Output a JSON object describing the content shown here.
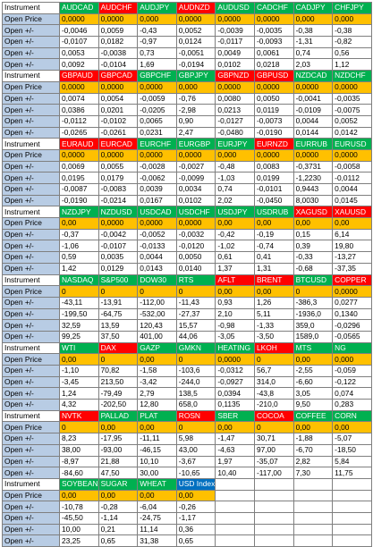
{
  "colors": {
    "green": "#00b050",
    "red": "#ff0000",
    "blue": "#0070c0",
    "orange": "#ffc000",
    "label_bg": "#b8cce4"
  },
  "blocks": [
    {
      "header": "Instrument",
      "open_label": "Open Price",
      "row_label": "Open +/-",
      "symbols": [
        {
          "name": "AUDCAD",
          "color": "g"
        },
        {
          "name": "AUDCHF",
          "color": "r"
        },
        {
          "name": "AUDJPY",
          "color": "g"
        },
        {
          "name": "AUDNZD",
          "color": "r"
        },
        {
          "name": "AUDUSD",
          "color": "g"
        },
        {
          "name": "CADCHF",
          "color": "g"
        },
        {
          "name": "CADJPY",
          "color": "g"
        },
        {
          "name": "CHFJPY",
          "color": "g"
        }
      ],
      "open": [
        "0,0000",
        "0,0000",
        "0,000",
        "0,0000",
        "0,0000",
        "0,0000",
        "0,000",
        "0,000"
      ],
      "rows": [
        [
          "-0,0046",
          "0,0059",
          "-0,43",
          "0,0052",
          "-0,0039",
          "-0,0035",
          "-0,38",
          "-0,38"
        ],
        [
          "-0,0107",
          "0,0182",
          "-0,97",
          "0,0124",
          "-0,0117",
          "-0,0093",
          "-1,31",
          "-0,82"
        ],
        [
          "0,0053",
          "-0,0038",
          "0,73",
          "-0,0051",
          "0,0049",
          "0,0061",
          "0,74",
          "0,56"
        ],
        [
          "0,0092",
          "-0,0104",
          "1,69",
          "-0,0194",
          "0,0102",
          "0,0218",
          "2,03",
          "1,12"
        ]
      ]
    },
    {
      "header": "Instrument",
      "open_label": "Open Price",
      "row_label": "Open +/-",
      "symbols": [
        {
          "name": "GBPAUD",
          "color": "r"
        },
        {
          "name": "GBPCAD",
          "color": "r"
        },
        {
          "name": "GBPCHF",
          "color": "g"
        },
        {
          "name": "GBPJPY",
          "color": "g"
        },
        {
          "name": "GBPNZD",
          "color": "r"
        },
        {
          "name": "GBPUSD",
          "color": "r"
        },
        {
          "name": "NZDCAD",
          "color": "g"
        },
        {
          "name": "NZDCHF",
          "color": "g"
        }
      ],
      "open": [
        "0,0000",
        "0,0000",
        "0,0000",
        "0,000",
        "0,0000",
        "0,0000",
        "0,0000",
        "0,0000"
      ],
      "rows": [
        [
          "0,0074",
          "0,0054",
          "-0,0059",
          "-0,76",
          "0,0080",
          "0,0050",
          "-0,0041",
          "-0,0035"
        ],
        [
          "0,0386",
          "0,0201",
          "-0,0205",
          "-2,98",
          "0,0213",
          "0,0119",
          "-0,0109",
          "-0,0075"
        ],
        [
          "-0,0112",
          "-0,0102",
          "0,0065",
          "0,90",
          "-0,0127",
          "-0,0073",
          "0,0044",
          "0,0052"
        ],
        [
          "-0,0265",
          "-0,0261",
          "0,0231",
          "2,47",
          "-0,0480",
          "-0,0190",
          "0,0144",
          "0,0142"
        ]
      ]
    },
    {
      "header": "Instrument",
      "open_label": "Open Price",
      "row_label": "Open +/-",
      "symbols": [
        {
          "name": "EURAUD",
          "color": "r"
        },
        {
          "name": "EURCAD",
          "color": "r"
        },
        {
          "name": "EURCHF",
          "color": "g"
        },
        {
          "name": "EURGBP",
          "color": "g"
        },
        {
          "name": "EURJPY",
          "color": "g"
        },
        {
          "name": "EURNZD",
          "color": "r"
        },
        {
          "name": "EURRUB",
          "color": "g"
        },
        {
          "name": "EURUSD",
          "color": "g"
        }
      ],
      "open": [
        "0,0000",
        "0,0000",
        "0,0000",
        "0,0000",
        "0,000",
        "0,0000",
        "0,0000",
        "0,0000"
      ],
      "rows": [
        [
          "0,0069",
          "0,0055",
          "-0,0028",
          "-0,0027",
          "-0,48",
          "0,0083",
          "-0,3731",
          "-0,0058"
        ],
        [
          "0,0195",
          "0,0179",
          "-0,0062",
          "-0,0099",
          "-1,03",
          "0,0199",
          "-1,2230",
          "-0,0112"
        ],
        [
          "-0,0087",
          "-0,0083",
          "0,0039",
          "0,0034",
          "0,74",
          "-0,0101",
          "0,9443",
          "0,0044"
        ],
        [
          "-0,0190",
          "-0,0214",
          "0,0167",
          "0,0102",
          "2,02",
          "-0,0450",
          "8,0030",
          "0,0145"
        ]
      ]
    },
    {
      "header": "Instrument",
      "open_label": "Open Price",
      "row_label": "Open +/-",
      "symbols": [
        {
          "name": "NZDJPY",
          "color": "g"
        },
        {
          "name": "NZDUSD",
          "color": "g"
        },
        {
          "name": "USDCAD",
          "color": "g"
        },
        {
          "name": "USDCHF",
          "color": "g"
        },
        {
          "name": "USDJPY",
          "color": "g"
        },
        {
          "name": "USDRUB",
          "color": "g"
        },
        {
          "name": "XAGUSD",
          "color": "r"
        },
        {
          "name": "XAUUSD",
          "color": "r"
        }
      ],
      "open": [
        "0,00",
        "0,0000",
        "0,0000",
        "0,0000",
        "0,00",
        "0,00",
        "0,00",
        "0,00"
      ],
      "rows": [
        [
          "-0,37",
          "-0,0042",
          "-0,0052",
          "-0,0032",
          "-0,42",
          "-0,19",
          "0,15",
          "6,14"
        ],
        [
          "-1,06",
          "-0,0107",
          "-0,0133",
          "-0,0120",
          "-1,02",
          "-0,74",
          "0,39",
          "19,80"
        ],
        [
          "0,59",
          "0,0035",
          "0,0044",
          "0,0050",
          "0,61",
          "0,41",
          "-0,33",
          "-13,27"
        ],
        [
          "1,42",
          "0,0129",
          "0,0143",
          "0,0140",
          "1,37",
          "1,31",
          "-0,68",
          "-37,35"
        ]
      ]
    },
    {
      "header": "Instrument",
      "open_label": "Open Price",
      "row_label": "Open +/-",
      "symbols": [
        {
          "name": "NASDAQ",
          "color": "g"
        },
        {
          "name": "S&P500",
          "color": "g"
        },
        {
          "name": "DOW30",
          "color": "g"
        },
        {
          "name": "RTS",
          "color": "g"
        },
        {
          "name": "AFLT",
          "color": "r"
        },
        {
          "name": "BRENT",
          "color": "r"
        },
        {
          "name": "BTCUSD",
          "color": "g"
        },
        {
          "name": "COPPER",
          "color": "r"
        }
      ],
      "open": [
        "0",
        "0",
        "0",
        "0",
        "0,00",
        "0,00",
        "0",
        "0,0000"
      ],
      "rows": [
        [
          "-43,11",
          "-13,91",
          "-112,00",
          "-11,43",
          "0,93",
          "1,26",
          "-386,3",
          "0,0277"
        ],
        [
          "-199,50",
          "-64,75",
          "-532,00",
          "-27,37",
          "2,10",
          "5,11",
          "-1936,0",
          "0,1340"
        ],
        [
          "32,59",
          "13,59",
          "120,43",
          "15,57",
          "-0,98",
          "-1,33",
          "359,0",
          "-0,0296"
        ],
        [
          "99,25",
          "37,50",
          "401,00",
          "44,06",
          "-3,05",
          "-3,50",
          "1589,0",
          "-0,0565"
        ]
      ]
    },
    {
      "header": "Instrument",
      "open_label": "Open Price",
      "row_label": "Open +/-",
      "symbols": [
        {
          "name": "WTI",
          "color": "g"
        },
        {
          "name": "DAX",
          "color": "r"
        },
        {
          "name": "GAZP",
          "color": "g"
        },
        {
          "name": "GMKN",
          "color": "g"
        },
        {
          "name": "HEATING",
          "color": "g"
        },
        {
          "name": "LKOH",
          "color": "r"
        },
        {
          "name": "MTS",
          "color": "g"
        },
        {
          "name": "NG",
          "color": "g"
        }
      ],
      "open": [
        "0,00",
        "0",
        "0,00",
        "0",
        "0,0000",
        "0",
        "0,00",
        "0,000"
      ],
      "rows": [
        [
          "-1,10",
          "70,82",
          "-1,58",
          "-103,6",
          "-0,0312",
          "56,7",
          "-2,55",
          "-0,059"
        ],
        [
          "-3,45",
          "213,50",
          "-3,42",
          "-244,0",
          "-0,0927",
          "314,0",
          "-6,60",
          "-0,122"
        ],
        [
          "1,24",
          "-79,49",
          "2,79",
          "138,5",
          "0,0394",
          "-43,8",
          "3,05",
          "0,074"
        ],
        [
          "4,32",
          "-202,50",
          "12,80",
          "658,0",
          "0,1135",
          "-210,0",
          "9,50",
          "0,283"
        ]
      ]
    },
    {
      "header": "Instrument",
      "open_label": "Open Price",
      "row_label": "Open +/-",
      "symbols": [
        {
          "name": "NVTK",
          "color": "r"
        },
        {
          "name": "PALLAD",
          "color": "g"
        },
        {
          "name": "PLAT",
          "color": "g"
        },
        {
          "name": "ROSN",
          "color": "r"
        },
        {
          "name": "SBER",
          "color": "g"
        },
        {
          "name": "COCOA",
          "color": "r"
        },
        {
          "name": "COFFEE",
          "color": "g"
        },
        {
          "name": "CORN",
          "color": "g"
        }
      ],
      "open": [
        "0",
        "0,00",
        "0,00",
        "0",
        "0,00",
        "0",
        "0,00",
        "0,00"
      ],
      "rows": [
        [
          "8,23",
          "-17,95",
          "-11,11",
          "5,98",
          "-1,47",
          "30,71",
          "-1,88",
          "-5,07"
        ],
        [
          "38,00",
          "-93,00",
          "-46,15",
          "43,00",
          "-4,63",
          "97,00",
          "-6,70",
          "-18,50"
        ],
        [
          "-8,97",
          "21,88",
          "10,10",
          "-3,67",
          "1,97",
          "-35,07",
          "2,82",
          "5,84"
        ],
        [
          "-84,60",
          "47,50",
          "30,00",
          "-10,65",
          "10,40",
          "-117,00",
          "7,30",
          "11,75"
        ]
      ]
    },
    {
      "header": "Instrument",
      "open_label": "Open Price",
      "row_label": "Open +/-",
      "symbols": [
        {
          "name": "SOYBEAN",
          "color": "g"
        },
        {
          "name": "SUGAR",
          "color": "g"
        },
        {
          "name": "WHEAT",
          "color": "g"
        },
        {
          "name": "USD Index",
          "color": "b"
        }
      ],
      "open": [
        "0,00",
        "0,00",
        "0,00",
        "0,00"
      ],
      "rows": [
        [
          "-10,78",
          "-0,28",
          "-6,04",
          "-0,26"
        ],
        [
          "-45,50",
          "-1,14",
          "-24,75",
          "-1,17"
        ],
        [
          "10,00",
          "0,21",
          "11,14",
          "0,36"
        ],
        [
          "23,25",
          "0,65",
          "31,38",
          "0,65"
        ]
      ]
    }
  ]
}
